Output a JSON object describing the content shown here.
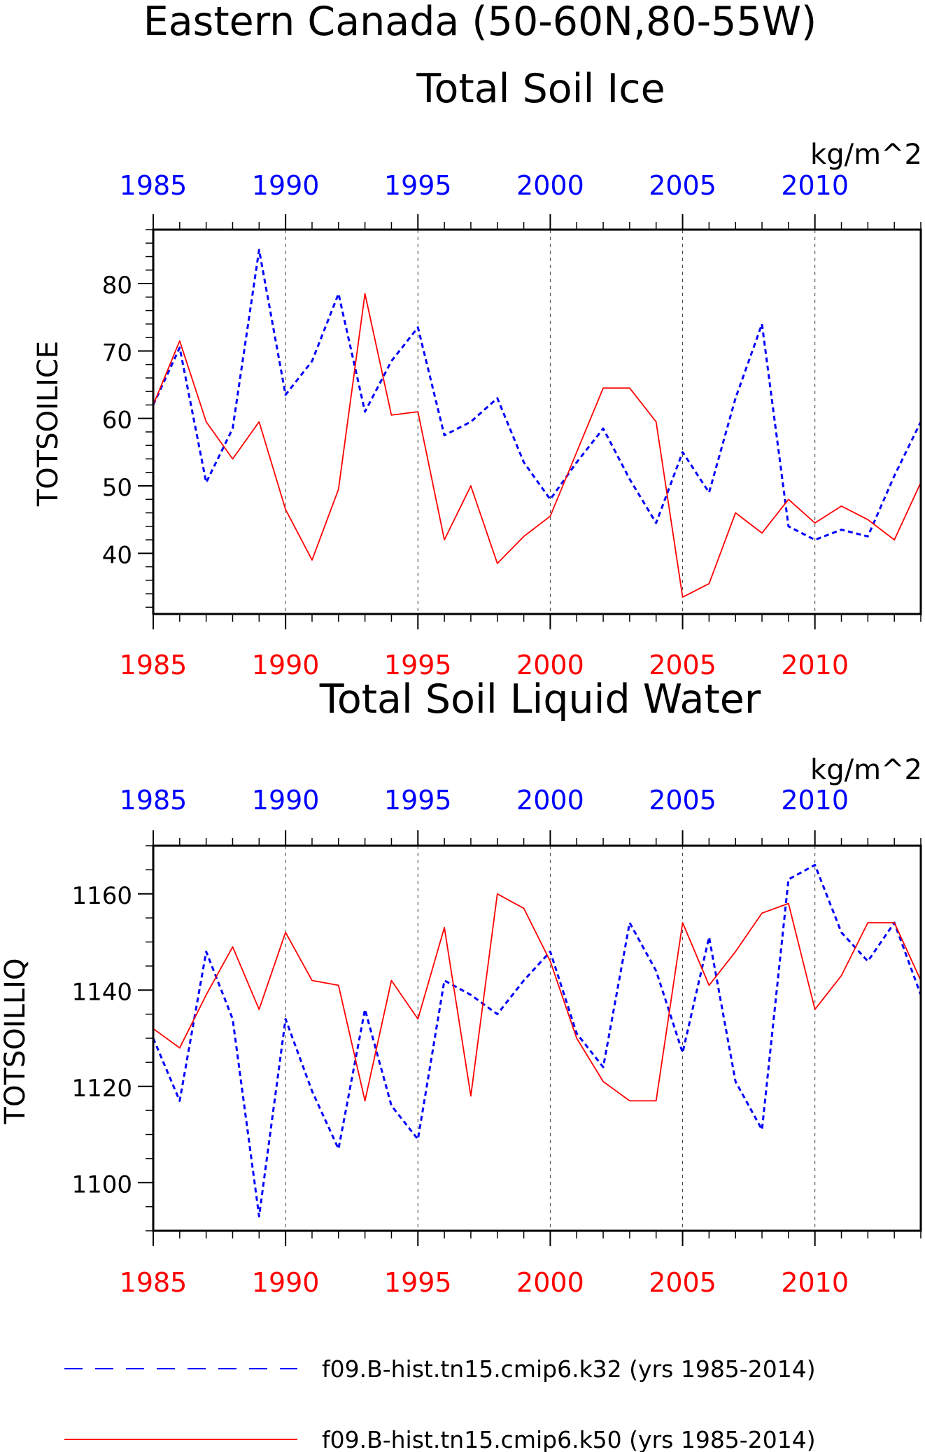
{
  "figure": {
    "title_line1": "Eastern Canada (50-60N,80-55W)",
    "legend": [
      {
        "label": "f09.B-hist.tn15.cmip6.k32 (yrs 1985-2014)",
        "color": "#0000ff",
        "style": "dashed"
      },
      {
        "label": "f09.B-hist.tn15.cmip6.k50 (yrs 1985-2014)",
        "color": "#ff0000",
        "style": "solid"
      }
    ],
    "colors": {
      "k32": "#0000ff",
      "k50": "#ff0000",
      "frame": "#000000",
      "grid": "#000000"
    }
  },
  "chart_data": [
    {
      "type": "line",
      "title": "Total Soil Ice",
      "units": "kg/m^2",
      "ylabel": "TOTSOILICE",
      "xlim": [
        1985,
        2014
      ],
      "ylim": [
        31,
        88
      ],
      "yticks": [
        40,
        50,
        60,
        70,
        80
      ],
      "xticks": [
        1985,
        1990,
        1995,
        2000,
        2005,
        2010
      ],
      "x": [
        1985,
        1986,
        1987,
        1988,
        1989,
        1990,
        1991,
        1992,
        1993,
        1994,
        1995,
        1996,
        1997,
        1998,
        1999,
        2000,
        2001,
        2002,
        2003,
        2004,
        2005,
        2006,
        2007,
        2008,
        2009,
        2010,
        2011,
        2012,
        2013,
        2014
      ],
      "series": [
        {
          "name": "f09.B-hist.tn15.cmip6.k32 (yrs 1985-2014)",
          "color": "#0000ff",
          "style": "dashed",
          "values": [
            62,
            70.5,
            50.5,
            58.5,
            85,
            63.5,
            68.5,
            78.5,
            61,
            68.5,
            73.5,
            57.5,
            59.5,
            63,
            53.5,
            48,
            53.5,
            58.5,
            51,
            44.5,
            55,
            49,
            63,
            74,
            44,
            42,
            43.5,
            42.5,
            51.5,
            59.5
          ]
        },
        {
          "name": "f09.B-hist.tn15.cmip6.k50 (yrs 1985-2014)",
          "color": "#ff0000",
          "style": "solid",
          "values": [
            62,
            71.5,
            59.5,
            54,
            59.5,
            46.5,
            39,
            49.5,
            78.5,
            60.5,
            61,
            42,
            50,
            38.5,
            42.5,
            45.5,
            55,
            64.5,
            64.5,
            59.5,
            33.5,
            35.5,
            46,
            43,
            48,
            44.5,
            47,
            45,
            42,
            50.5
          ]
        }
      ]
    },
    {
      "type": "line",
      "title": "Total Soil Liquid Water",
      "units": "kg/m^2",
      "ylabel": "TOTSOILLIQ",
      "xlim": [
        1985,
        2014
      ],
      "ylim": [
        1090,
        1170
      ],
      "yticks": [
        1100,
        1120,
        1140,
        1160
      ],
      "xticks": [
        1985,
        1990,
        1995,
        2000,
        2005,
        2010
      ],
      "x": [
        1985,
        1986,
        1987,
        1988,
        1989,
        1990,
        1991,
        1992,
        1993,
        1994,
        1995,
        1996,
        1997,
        1998,
        1999,
        2000,
        2001,
        2002,
        2003,
        2004,
        2005,
        2006,
        2007,
        2008,
        2009,
        2010,
        2011,
        2012,
        2013,
        2014
      ],
      "series": [
        {
          "name": "f09.B-hist.tn15.cmip6.k32 (yrs 1985-2014)",
          "color": "#0000ff",
          "style": "dashed",
          "values": [
            1130,
            1117,
            1148,
            1134,
            1093,
            1134,
            1119,
            1107,
            1136,
            1116,
            1109,
            1142,
            1139,
            1135,
            1142,
            1148,
            1131,
            1124,
            1154,
            1144,
            1127,
            1151,
            1121,
            1111,
            1163,
            1166,
            1152,
            1146,
            1154,
            1139
          ]
        },
        {
          "name": "f09.B-hist.tn15.cmip6.k50 (yrs 1985-2014)",
          "color": "#ff0000",
          "style": "solid",
          "values": [
            1132,
            1128,
            1139,
            1149,
            1136,
            1152,
            1142,
            1141,
            1117,
            1142,
            1134,
            1153,
            1118,
            1160,
            1157,
            1146,
            1130,
            1121,
            1117,
            1117,
            1154,
            1141,
            1148,
            1156,
            1158,
            1136,
            1143,
            1154,
            1154,
            1142
          ]
        }
      ]
    }
  ]
}
